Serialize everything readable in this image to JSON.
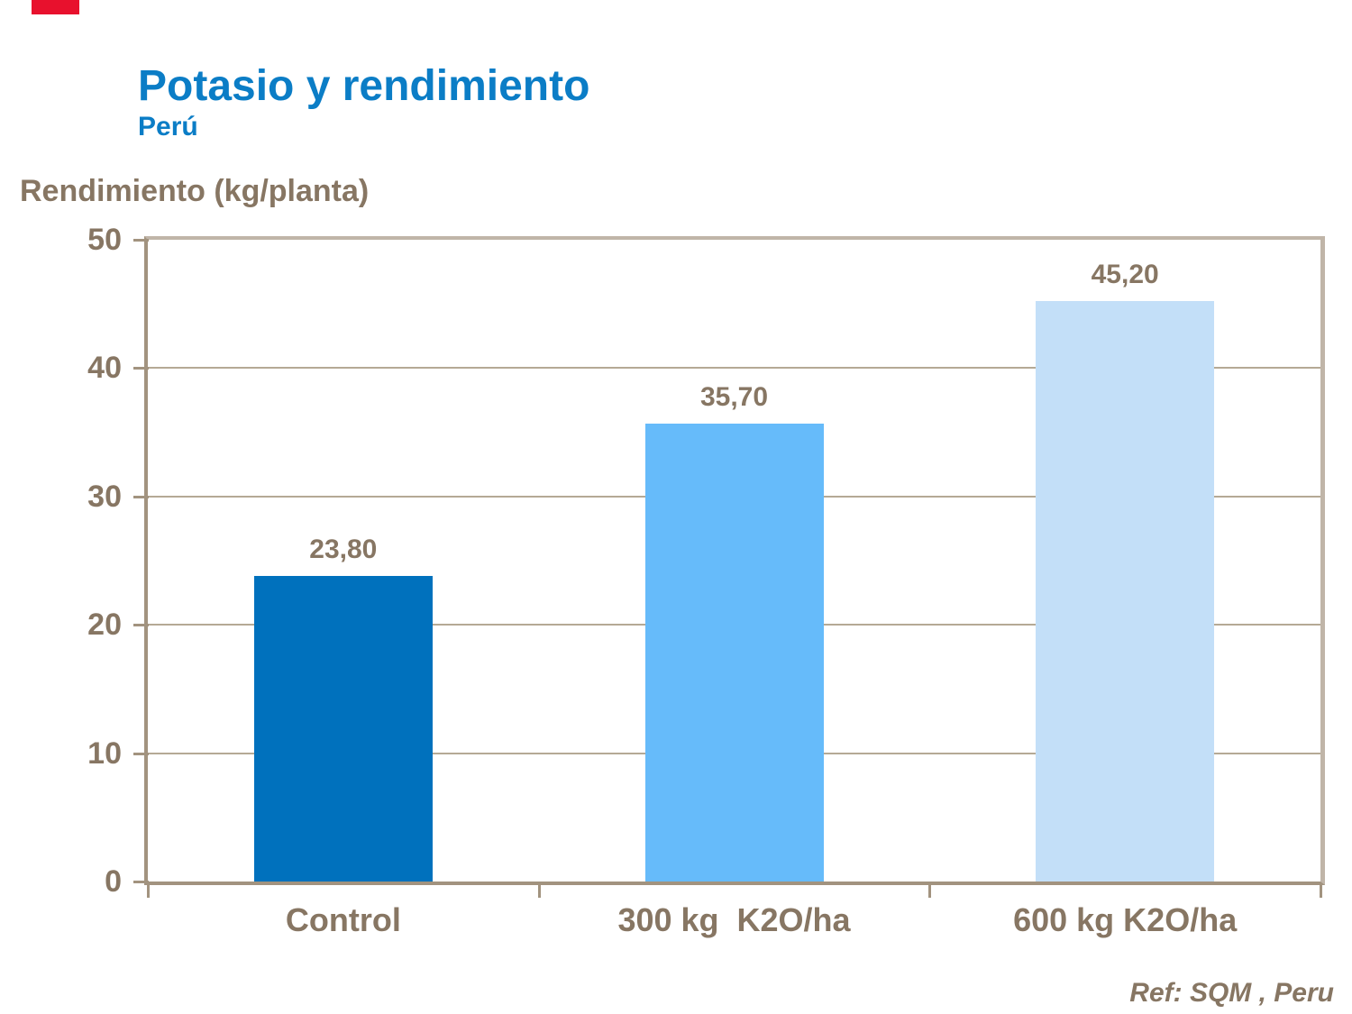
{
  "header": {
    "title": "Potasio y rendimiento",
    "subtitle": "Perú",
    "title_color": "#0b7dc6"
  },
  "decor": {
    "corner_mark_color": "#e8112d"
  },
  "footer": {
    "reference": "Ref: SQM , Peru"
  },
  "chart_data": {
    "type": "bar",
    "title": "Potasio y rendimiento",
    "subtitle": "Perú",
    "ylabel": "Rendimiento (kg/planta)",
    "xlabel": "",
    "categories": [
      "Control",
      "300 kg  K2O/ha",
      "600 kg K2O/ha"
    ],
    "values": [
      23.8,
      35.7,
      45.2
    ],
    "value_labels": [
      "23,80",
      "35,70",
      "45,20"
    ],
    "bar_colors": [
      "#0071bd",
      "#66bbfa",
      "#c3dff8"
    ],
    "ylim": [
      0,
      50
    ],
    "y_ticks": [
      0,
      10,
      20,
      30,
      40,
      50
    ],
    "y_tick_labels": [
      "0",
      "10",
      "20",
      "30",
      "40",
      "50"
    ],
    "grid": true,
    "legend": false,
    "annotation": "Ref: SQM , Peru",
    "text_color": "#877663"
  }
}
